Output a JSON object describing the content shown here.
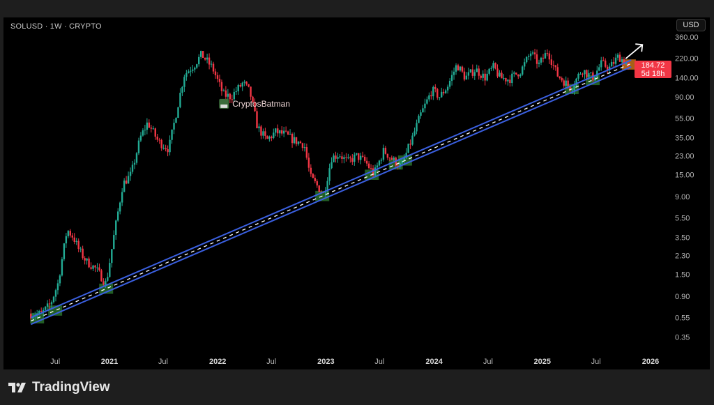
{
  "header": {
    "symbol_line": "SOLUSD · 1W · CRYPTO",
    "currency_button": "USD"
  },
  "price_label": {
    "price": "184.72",
    "countdown": "5d 18h",
    "color": "#f23645"
  },
  "branding": {
    "logo_text": "TradingView"
  },
  "annotation": {
    "text": "CryptosBatman",
    "date": "2022-01-20",
    "value": 78
  },
  "colors": {
    "up": "#22ab94",
    "down": "#f23645",
    "channel": "#3a5fe0",
    "midline": "#ffffff",
    "touch_box": "#2e7d32",
    "current_box": "#e0801e",
    "background": "#000000"
  },
  "chart_data": {
    "type": "candlestick",
    "title": "SOLUSD · 1W · CRYPTO",
    "y_scale": "log",
    "ylim": [
      0.3,
      380
    ],
    "y_ticks": [
      "360.00",
      "220.00",
      "140.00",
      "90.00",
      "55.00",
      "35.00",
      "23.00",
      "15.00",
      "9.00",
      "5.50",
      "3.50",
      "2.30",
      "1.50",
      "0.90",
      "0.55",
      "0.35"
    ],
    "x_ticks": [
      {
        "label": "Jul",
        "date": "2020-07-01"
      },
      {
        "label": "2021",
        "date": "2021-01-01",
        "year": true
      },
      {
        "label": "Jul",
        "date": "2021-07-01"
      },
      {
        "label": "2022",
        "date": "2022-01-01",
        "year": true
      },
      {
        "label": "Jul",
        "date": "2022-07-01"
      },
      {
        "label": "2023",
        "date": "2023-01-01",
        "year": true
      },
      {
        "label": "Jul",
        "date": "2023-07-01"
      },
      {
        "label": "2024",
        "date": "2024-01-01",
        "year": true
      },
      {
        "label": "Jul",
        "date": "2024-07-01"
      },
      {
        "label": "2025",
        "date": "2025-01-01",
        "year": true
      },
      {
        "label": "Jul",
        "date": "2025-07-01"
      },
      {
        "label": "2026",
        "date": "2026-01-01",
        "year": true
      }
    ],
    "approx_monthly_close": [
      [
        "2020-04-10",
        0.6
      ],
      [
        "2020-05-15",
        0.6
      ],
      [
        "2020-06-15",
        0.75
      ],
      [
        "2020-07-10",
        1.2
      ],
      [
        "2020-08-10",
        4.2
      ],
      [
        "2020-09-01",
        3.5
      ],
      [
        "2020-09-20",
        2.6
      ],
      [
        "2020-10-15",
        2.0
      ],
      [
        "2020-11-15",
        1.7
      ],
      [
        "2020-12-20",
        1.2
      ],
      [
        "2021-01-15",
        3.5
      ],
      [
        "2021-02-15",
        12
      ],
      [
        "2021-03-15",
        15
      ],
      [
        "2021-04-15",
        35
      ],
      [
        "2021-05-10",
        50
      ],
      [
        "2021-06-15",
        32
      ],
      [
        "2021-07-20",
        27
      ],
      [
        "2021-08-20",
        75
      ],
      [
        "2021-09-10",
        150
      ],
      [
        "2021-10-15",
        190
      ],
      [
        "2021-11-08",
        240
      ],
      [
        "2021-12-15",
        175
      ],
      [
        "2022-01-20",
        95
      ],
      [
        "2022-02-15",
        90
      ],
      [
        "2022-03-28",
        125
      ],
      [
        "2022-04-20",
        100
      ],
      [
        "2022-05-15",
        45
      ],
      [
        "2022-06-15",
        33
      ],
      [
        "2022-07-15",
        40
      ],
      [
        "2022-08-15",
        38
      ],
      [
        "2022-09-15",
        33
      ],
      [
        "2022-10-20",
        30
      ],
      [
        "2022-11-10",
        14
      ],
      [
        "2022-12-25",
        9.5
      ],
      [
        "2023-01-20",
        22
      ],
      [
        "2023-02-15",
        24
      ],
      [
        "2023-03-15",
        20
      ],
      [
        "2023-04-15",
        23
      ],
      [
        "2023-05-15",
        20
      ],
      [
        "2023-06-12",
        15
      ],
      [
        "2023-07-15",
        26
      ],
      [
        "2023-08-15",
        21
      ],
      [
        "2023-09-12",
        18
      ],
      [
        "2023-10-20",
        35
      ],
      [
        "2023-11-15",
        58
      ],
      [
        "2023-12-25",
        105
      ],
      [
        "2024-01-20",
        90
      ],
      [
        "2024-02-15",
        115
      ],
      [
        "2024-03-18",
        190
      ],
      [
        "2024-04-15",
        140
      ],
      [
        "2024-05-20",
        170
      ],
      [
        "2024-06-20",
        140
      ],
      [
        "2024-07-20",
        180
      ],
      [
        "2024-08-10",
        140
      ],
      [
        "2024-09-10",
        135
      ],
      [
        "2024-10-20",
        165
      ],
      [
        "2024-11-22",
        250
      ],
      [
        "2024-12-20",
        190
      ],
      [
        "2025-01-19",
        260
      ],
      [
        "2025-02-20",
        150
      ],
      [
        "2025-04-08",
        110
      ],
      [
        "2025-05-15",
        170
      ],
      [
        "2025-06-20",
        140
      ],
      [
        "2025-07-20",
        195
      ],
      [
        "2025-08-15",
        175
      ],
      [
        "2025-09-15",
        230
      ],
      [
        "2025-10-20",
        184.72
      ]
    ],
    "channel": {
      "start": [
        "2020-04-10",
        0.47
      ],
      "end": [
        "2025-10-28",
        180
      ],
      "upper_offset_ratio": 1.17
    },
    "touch_points": [
      "2020-05-01",
      "2020-07-01",
      "2020-12-20",
      "2022-12-20",
      "2023-06-05",
      "2023-08-25",
      "2023-09-25",
      "2025-04-10",
      "2025-06-20"
    ],
    "current_point": "2025-10-20",
    "last_price": 184.72
  }
}
